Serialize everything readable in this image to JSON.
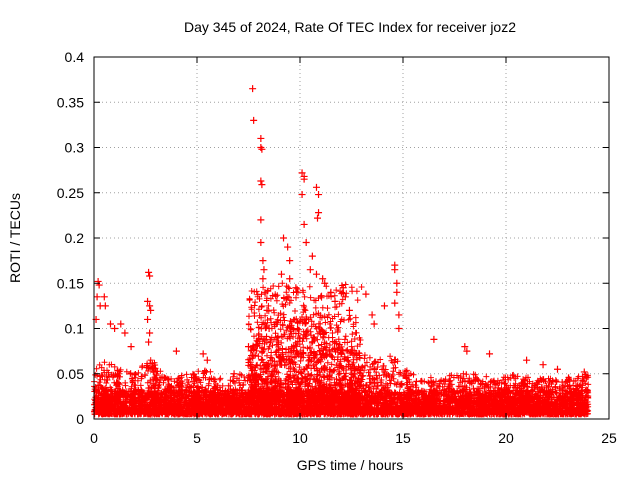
{
  "chart_data": {
    "type": "scatter",
    "title": "Day 345 of 2024, Rate Of TEC Index for receiver joz2",
    "xlabel": "GPS time / hours",
    "ylabel": "ROTI / TECUs",
    "xlim": [
      0,
      25
    ],
    "ylim": [
      0,
      0.4
    ],
    "x_ticks": [
      "0",
      "5",
      "10",
      "15",
      "20",
      "25"
    ],
    "y_ticks": [
      "0",
      "0.05",
      "0.1",
      "0.15",
      "0.2",
      "0.25",
      "0.3",
      "0.35",
      "0.4"
    ],
    "grid": true,
    "marker": "plus",
    "marker_color": "#ff0000",
    "series": [
      {
        "highlighted_points": [
          [
            7.7,
            0.365
          ],
          [
            7.75,
            0.33
          ],
          [
            8.1,
            0.31
          ],
          [
            8.1,
            0.3
          ],
          [
            8.15,
            0.298
          ],
          [
            8.1,
            0.263
          ],
          [
            8.15,
            0.259
          ],
          [
            8.1,
            0.22
          ],
          [
            8.1,
            0.195
          ],
          [
            8.2,
            0.175
          ],
          [
            8.25,
            0.165
          ],
          [
            8.2,
            0.155
          ],
          [
            8.3,
            0.14
          ],
          [
            8.4,
            0.12
          ],
          [
            8.5,
            0.1
          ],
          [
            10.1,
            0.272
          ],
          [
            10.2,
            0.268
          ],
          [
            10.2,
            0.265
          ],
          [
            10.1,
            0.248
          ],
          [
            10.2,
            0.215
          ],
          [
            10.8,
            0.256
          ],
          [
            10.9,
            0.248
          ],
          [
            10.9,
            0.228
          ],
          [
            10.85,
            0.222
          ],
          [
            9.2,
            0.2
          ],
          [
            9.4,
            0.19
          ],
          [
            9.5,
            0.175
          ],
          [
            9.1,
            0.16
          ],
          [
            9.5,
            0.155
          ],
          [
            10.3,
            0.195
          ],
          [
            10.6,
            0.18
          ],
          [
            10.5,
            0.165
          ],
          [
            10.8,
            0.16
          ],
          [
            11.1,
            0.155
          ],
          [
            9.8,
            0.145
          ],
          [
            9.9,
            0.14
          ],
          [
            11.2,
            0.15
          ],
          [
            11.5,
            0.14
          ],
          [
            11.7,
            0.13
          ],
          [
            12.1,
            0.145
          ],
          [
            12.2,
            0.135
          ],
          [
            12.4,
            0.12
          ],
          [
            13.2,
            0.138
          ],
          [
            13.5,
            0.115
          ],
          [
            13.6,
            0.105
          ],
          [
            14.1,
            0.125
          ],
          [
            14.6,
            0.17
          ],
          [
            14.6,
            0.165
          ],
          [
            14.7,
            0.15
          ],
          [
            14.7,
            0.14
          ],
          [
            14.6,
            0.128
          ],
          [
            14.8,
            0.115
          ],
          [
            14.8,
            0.1
          ],
          [
            2.65,
            0.162
          ],
          [
            2.7,
            0.158
          ],
          [
            2.6,
            0.13
          ],
          [
            2.7,
            0.125
          ],
          [
            2.75,
            0.12
          ],
          [
            2.6,
            0.11
          ],
          [
            2.7,
            0.095
          ],
          [
            2.65,
            0.085
          ],
          [
            0.2,
            0.152
          ],
          [
            0.25,
            0.148
          ],
          [
            0.15,
            0.135
          ],
          [
            0.3,
            0.125
          ],
          [
            0.1,
            0.11
          ],
          [
            0.5,
            0.135
          ],
          [
            0.55,
            0.125
          ],
          [
            0.8,
            0.105
          ],
          [
            1.0,
            0.1
          ],
          [
            1.3,
            0.105
          ],
          [
            1.5,
            0.095
          ],
          [
            1.8,
            0.08
          ],
          [
            16.5,
            0.088
          ],
          [
            18.0,
            0.08
          ],
          [
            18.1,
            0.075
          ],
          [
            19.2,
            0.072
          ],
          [
            21.0,
            0.065
          ],
          [
            21.8,
            0.06
          ],
          [
            22.5,
            0.055
          ],
          [
            23.8,
            0.052
          ],
          [
            4.0,
            0.075
          ],
          [
            5.3,
            0.072
          ],
          [
            5.5,
            0.065
          ],
          [
            6.8,
            0.05
          ],
          [
            7.5,
            0.08
          ]
        ],
        "base_noise": {
          "x_range": [
            0,
            24
          ],
          "y_range": [
            0.005,
            0.05
          ]
        },
        "activity_envelope": [
          [
            0,
            0.055
          ],
          [
            0.5,
            0.065
          ],
          [
            1,
            0.06
          ],
          [
            2,
            0.05
          ],
          [
            2.7,
            0.07
          ],
          [
            3.5,
            0.045
          ],
          [
            4.5,
            0.05
          ],
          [
            5.5,
            0.055
          ],
          [
            6.5,
            0.04
          ],
          [
            7.5,
            0.07
          ],
          [
            8.5,
            0.12
          ],
          [
            9.5,
            0.11
          ],
          [
            10.5,
            0.12
          ],
          [
            11.5,
            0.09
          ],
          [
            12.5,
            0.075
          ],
          [
            13.5,
            0.07
          ],
          [
            14.5,
            0.075
          ],
          [
            15.5,
            0.05
          ],
          [
            16.5,
            0.045
          ],
          [
            17.5,
            0.05
          ],
          [
            18.5,
            0.05
          ],
          [
            19.5,
            0.045
          ],
          [
            20.5,
            0.05
          ],
          [
            21.5,
            0.045
          ],
          [
            22.5,
            0.045
          ],
          [
            24,
            0.05
          ]
        ]
      }
    ]
  }
}
